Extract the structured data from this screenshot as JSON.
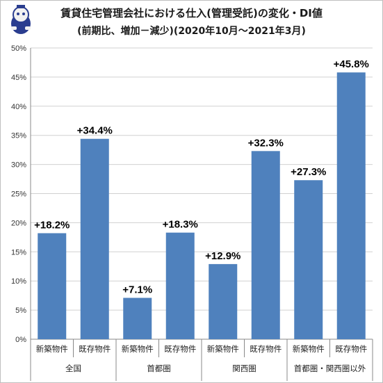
{
  "chart_data": {
    "type": "bar",
    "title": "賃貸住宅管理会社における仕入(管理受託)の変化・DI値",
    "subtitle": "(前期比、増加－減少)(2020年10月～2021年3月)",
    "yticks": [
      "0%",
      "5%",
      "10%",
      "15%",
      "20%",
      "25%",
      "30%",
      "35%",
      "40%",
      "45%",
      "50%"
    ],
    "ylim": [
      0,
      50
    ],
    "grid": true,
    "categories": [
      "新築物件",
      "既存物件",
      "新築物件",
      "既存物件",
      "新築物件",
      "既存物件",
      "新築物件",
      "既存物件"
    ],
    "groups": [
      "全国",
      "首都圏",
      "関西圏",
      "首都圏・関西圏以外"
    ],
    "values": [
      18.2,
      34.4,
      7.1,
      18.3,
      12.9,
      32.3,
      27.3,
      45.8
    ],
    "labels": [
      "+18.2%",
      "+34.4%",
      "+7.1%",
      "+18.3%",
      "+12.9%",
      "+32.3%",
      "+27.3%",
      "+45.8%"
    ],
    "bar_color": "#4f81bd"
  }
}
